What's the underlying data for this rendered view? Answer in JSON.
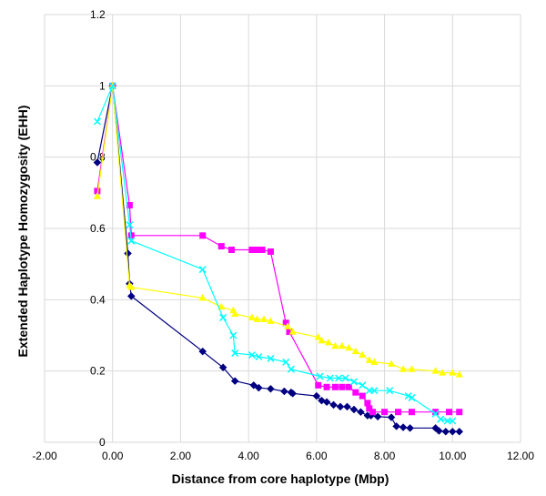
{
  "chart_data": {
    "type": "line",
    "title": "",
    "xlabel": "Distance from core haplotype (Mbp)",
    "ylabel": "Extended Haplotype Homozygosity (EHH)",
    "xlim": [
      -2,
      12
    ],
    "ylim": [
      0,
      1.2
    ],
    "x_ticks": [
      "-2.00",
      "0.00",
      "2.00",
      "4.00",
      "6.00",
      "8.00",
      "10.00",
      "12.00"
    ],
    "y_ticks": [
      "0",
      "0.2",
      "0.4",
      "0.6",
      "0.8",
      "1",
      "1.2"
    ],
    "grid": "horizontal and vertical",
    "legend": "none",
    "series": [
      {
        "color": "#000080",
        "marker": "diamond",
        "points": [
          [
            -0.45,
            0.785
          ],
          [
            0,
            1.0
          ],
          [
            0.45,
            0.53
          ],
          [
            0.5,
            0.445
          ],
          [
            0.55,
            0.41
          ],
          [
            2.65,
            0.255
          ],
          [
            3.25,
            0.21
          ],
          [
            3.6,
            0.172
          ],
          [
            4.15,
            0.16
          ],
          [
            4.3,
            0.153
          ],
          [
            4.65,
            0.15
          ],
          [
            5.05,
            0.143
          ],
          [
            5.25,
            0.14
          ],
          [
            5.3,
            0.137
          ],
          [
            6.0,
            0.13
          ],
          [
            6.15,
            0.117
          ],
          [
            6.3,
            0.113
          ],
          [
            6.5,
            0.105
          ],
          [
            6.7,
            0.1
          ],
          [
            6.9,
            0.1
          ],
          [
            7.1,
            0.092
          ],
          [
            7.3,
            0.085
          ],
          [
            7.5,
            0.075
          ],
          [
            7.6,
            0.075
          ],
          [
            7.8,
            0.072
          ],
          [
            8.2,
            0.07
          ],
          [
            8.35,
            0.045
          ],
          [
            8.55,
            0.042
          ],
          [
            8.75,
            0.04
          ],
          [
            9.5,
            0.04
          ],
          [
            9.6,
            0.032
          ],
          [
            9.8,
            0.03
          ],
          [
            10.0,
            0.03
          ],
          [
            10.2,
            0.03
          ]
        ]
      },
      {
        "color": "#ff00ff",
        "marker": "square",
        "points": [
          [
            -0.45,
            0.705
          ],
          [
            0,
            1.0
          ],
          [
            0.5,
            0.665
          ],
          [
            0.55,
            0.58
          ],
          [
            2.65,
            0.58
          ],
          [
            3.2,
            0.55
          ],
          [
            3.5,
            0.54
          ],
          [
            4.1,
            0.54
          ],
          [
            4.25,
            0.54
          ],
          [
            4.4,
            0.54
          ],
          [
            4.65,
            0.535
          ],
          [
            5.1,
            0.335
          ],
          [
            5.2,
            0.31
          ],
          [
            6.05,
            0.16
          ],
          [
            6.3,
            0.155
          ],
          [
            6.55,
            0.155
          ],
          [
            6.75,
            0.155
          ],
          [
            6.95,
            0.155
          ],
          [
            7.15,
            0.14
          ],
          [
            7.35,
            0.13
          ],
          [
            7.5,
            0.11
          ],
          [
            7.55,
            0.095
          ],
          [
            7.65,
            0.085
          ],
          [
            8.0,
            0.085
          ],
          [
            8.4,
            0.085
          ],
          [
            8.8,
            0.085
          ],
          [
            9.5,
            0.085
          ],
          [
            9.9,
            0.085
          ],
          [
            10.2,
            0.085
          ]
        ]
      },
      {
        "color": "#ffff00",
        "marker": "triangle",
        "points": [
          [
            -0.45,
            0.69
          ],
          [
            0,
            1.0
          ],
          [
            0.5,
            0.44
          ],
          [
            0.55,
            0.435
          ],
          [
            2.65,
            0.405
          ],
          [
            3.2,
            0.38
          ],
          [
            3.55,
            0.37
          ],
          [
            3.6,
            0.36
          ],
          [
            4.1,
            0.35
          ],
          [
            4.25,
            0.345
          ],
          [
            4.45,
            0.345
          ],
          [
            4.65,
            0.34
          ],
          [
            5.15,
            0.325
          ],
          [
            5.3,
            0.31
          ],
          [
            6.05,
            0.295
          ],
          [
            6.15,
            0.285
          ],
          [
            6.35,
            0.28
          ],
          [
            6.55,
            0.27
          ],
          [
            6.75,
            0.27
          ],
          [
            6.95,
            0.265
          ],
          [
            7.15,
            0.255
          ],
          [
            7.35,
            0.245
          ],
          [
            7.55,
            0.23
          ],
          [
            7.7,
            0.225
          ],
          [
            8.2,
            0.22
          ],
          [
            8.55,
            0.205
          ],
          [
            8.8,
            0.205
          ],
          [
            9.5,
            0.2
          ],
          [
            9.7,
            0.195
          ],
          [
            10.0,
            0.195
          ],
          [
            10.2,
            0.19
          ]
        ]
      },
      {
        "color": "#00ffff",
        "marker": "x",
        "points": [
          [
            -0.45,
            0.9
          ],
          [
            0,
            1.0
          ],
          [
            0.5,
            0.61
          ],
          [
            0.55,
            0.565
          ],
          [
            2.65,
            0.485
          ],
          [
            3.25,
            0.35
          ],
          [
            3.55,
            0.3
          ],
          [
            3.6,
            0.25
          ],
          [
            4.1,
            0.245
          ],
          [
            4.3,
            0.24
          ],
          [
            4.65,
            0.235
          ],
          [
            5.1,
            0.225
          ],
          [
            5.25,
            0.205
          ],
          [
            6.1,
            0.185
          ],
          [
            6.4,
            0.18
          ],
          [
            6.65,
            0.18
          ],
          [
            6.85,
            0.18
          ],
          [
            7.1,
            0.17
          ],
          [
            7.35,
            0.16
          ],
          [
            7.55,
            0.145
          ],
          [
            7.7,
            0.145
          ],
          [
            8.15,
            0.145
          ],
          [
            8.7,
            0.13
          ],
          [
            8.8,
            0.125
          ],
          [
            9.5,
            0.08
          ],
          [
            9.65,
            0.065
          ],
          [
            9.85,
            0.06
          ],
          [
            10.0,
            0.06
          ]
        ]
      }
    ]
  }
}
